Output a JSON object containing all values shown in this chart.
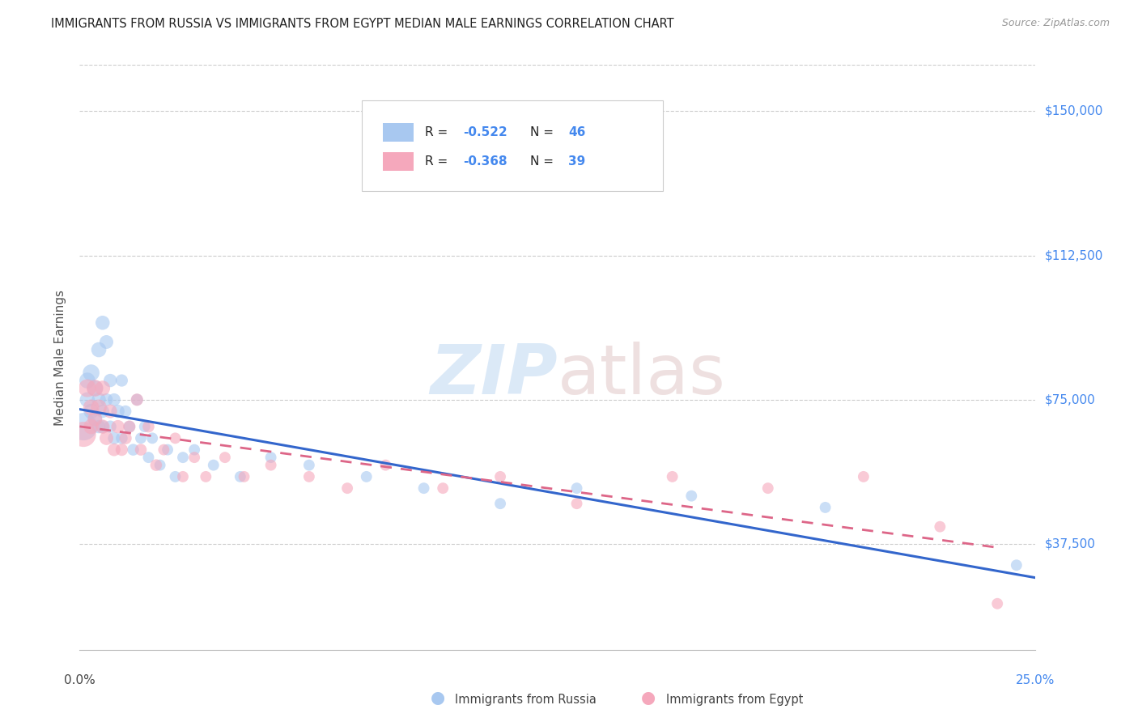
{
  "title": "IMMIGRANTS FROM RUSSIA VS IMMIGRANTS FROM EGYPT MEDIAN MALE EARNINGS CORRELATION CHART",
  "source": "Source: ZipAtlas.com",
  "ylabel": "Median Male Earnings",
  "ytick_labels": [
    "$37,500",
    "$75,000",
    "$112,500",
    "$150,000"
  ],
  "ytick_values": [
    37500,
    75000,
    112500,
    150000
  ],
  "ylim": [
    10000,
    162000
  ],
  "xlim": [
    0.0,
    0.25
  ],
  "russia_R": "-0.522",
  "russia_N": "46",
  "egypt_R": "-0.368",
  "egypt_N": "39",
  "russia_color": "#a8c8f0",
  "egypt_color": "#f5a8bc",
  "russia_line_color": "#3366cc",
  "egypt_line_color": "#dd6688",
  "background_color": "#ffffff",
  "grid_color": "#cccccc",
  "label_color": "#4488ee",
  "text_color": "#333333",
  "russia_x": [
    0.001,
    0.002,
    0.002,
    0.003,
    0.003,
    0.004,
    0.004,
    0.005,
    0.005,
    0.005,
    0.006,
    0.006,
    0.006,
    0.007,
    0.007,
    0.008,
    0.008,
    0.009,
    0.009,
    0.01,
    0.011,
    0.011,
    0.012,
    0.013,
    0.014,
    0.015,
    0.016,
    0.017,
    0.018,
    0.019,
    0.021,
    0.023,
    0.025,
    0.027,
    0.03,
    0.035,
    0.042,
    0.05,
    0.06,
    0.075,
    0.09,
    0.11,
    0.13,
    0.16,
    0.195,
    0.245
  ],
  "russia_y": [
    68000,
    80000,
    75000,
    82000,
    72000,
    78000,
    70000,
    88000,
    75000,
    68000,
    95000,
    72000,
    68000,
    90000,
    75000,
    80000,
    68000,
    75000,
    65000,
    72000,
    80000,
    65000,
    72000,
    68000,
    62000,
    75000,
    65000,
    68000,
    60000,
    65000,
    58000,
    62000,
    55000,
    60000,
    62000,
    58000,
    55000,
    60000,
    58000,
    55000,
    52000,
    48000,
    52000,
    50000,
    47000,
    32000
  ],
  "russia_size": [
    600,
    200,
    180,
    220,
    180,
    200,
    160,
    180,
    160,
    140,
    160,
    140,
    130,
    150,
    130,
    140,
    120,
    130,
    120,
    140,
    120,
    110,
    110,
    110,
    110,
    110,
    100,
    100,
    100,
    100,
    100,
    100,
    100,
    100,
    100,
    100,
    100,
    100,
    100,
    100,
    100,
    100,
    100,
    100,
    100,
    100
  ],
  "egypt_x": [
    0.001,
    0.002,
    0.003,
    0.003,
    0.004,
    0.004,
    0.005,
    0.006,
    0.006,
    0.007,
    0.008,
    0.009,
    0.01,
    0.011,
    0.012,
    0.013,
    0.015,
    0.016,
    0.018,
    0.02,
    0.022,
    0.025,
    0.027,
    0.03,
    0.033,
    0.038,
    0.043,
    0.05,
    0.06,
    0.07,
    0.08,
    0.095,
    0.11,
    0.13,
    0.155,
    0.18,
    0.205,
    0.225,
    0.24
  ],
  "egypt_y": [
    66000,
    78000,
    73000,
    68000,
    78000,
    70000,
    73000,
    78000,
    68000,
    65000,
    72000,
    62000,
    68000,
    62000,
    65000,
    68000,
    75000,
    62000,
    68000,
    58000,
    62000,
    65000,
    55000,
    60000,
    55000,
    60000,
    55000,
    58000,
    55000,
    52000,
    58000,
    52000,
    55000,
    48000,
    55000,
    52000,
    55000,
    42000,
    22000
  ],
  "egypt_size": [
    500,
    250,
    200,
    180,
    220,
    170,
    200,
    180,
    160,
    150,
    150,
    130,
    140,
    120,
    120,
    120,
    120,
    110,
    110,
    110,
    100,
    100,
    100,
    100,
    100,
    100,
    100,
    100,
    100,
    100,
    100,
    100,
    100,
    100,
    100,
    100,
    100,
    100,
    100
  ]
}
